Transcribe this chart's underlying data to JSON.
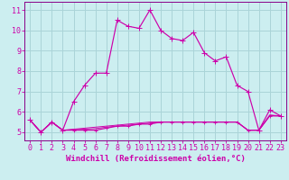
{
  "xlabel": "Windchill (Refroidissement éolien,°C)",
  "bg_color": "#cceef0",
  "grid_color": "#aad4d8",
  "line_color": "#cc00aa",
  "spine_color": "#880088",
  "x": [
    0,
    1,
    2,
    3,
    4,
    5,
    6,
    7,
    8,
    9,
    10,
    11,
    12,
    13,
    14,
    15,
    16,
    17,
    18,
    19,
    20,
    21,
    22,
    23
  ],
  "y_main": [
    5.6,
    5.0,
    5.5,
    5.1,
    6.5,
    7.3,
    7.9,
    7.9,
    10.5,
    10.2,
    10.1,
    11.0,
    10.0,
    9.6,
    9.5,
    9.9,
    8.9,
    8.5,
    8.7,
    7.3,
    7.0,
    5.1,
    6.1,
    5.8
  ],
  "y_low": [
    5.6,
    5.0,
    5.5,
    5.1,
    5.1,
    5.1,
    5.1,
    5.2,
    5.3,
    5.3,
    5.4,
    5.4,
    5.5,
    5.5,
    5.5,
    5.5,
    5.5,
    5.5,
    5.5,
    5.5,
    5.1,
    5.1,
    5.8,
    5.8
  ],
  "y_high": [
    5.6,
    5.0,
    5.5,
    5.1,
    5.15,
    5.2,
    5.25,
    5.3,
    5.35,
    5.4,
    5.45,
    5.5,
    5.5,
    5.5,
    5.5,
    5.5,
    5.5,
    5.5,
    5.5,
    5.5,
    5.1,
    5.1,
    5.85,
    5.8
  ],
  "y_mid": [
    5.6,
    5.0,
    5.5,
    5.1,
    5.12,
    5.15,
    5.18,
    5.25,
    5.3,
    5.35,
    5.4,
    5.45,
    5.5,
    5.5,
    5.5,
    5.5,
    5.5,
    5.5,
    5.5,
    5.5,
    5.1,
    5.1,
    5.82,
    5.8
  ],
  "ylim": [
    4.6,
    11.4
  ],
  "yticks": [
    5,
    6,
    7,
    8,
    9,
    10,
    11
  ],
  "xticks": [
    0,
    1,
    2,
    3,
    4,
    5,
    6,
    7,
    8,
    9,
    10,
    11,
    12,
    13,
    14,
    15,
    16,
    17,
    18,
    19,
    20,
    21,
    22,
    23
  ],
  "xlabel_fontsize": 6.5,
  "tick_fontsize": 6.0
}
